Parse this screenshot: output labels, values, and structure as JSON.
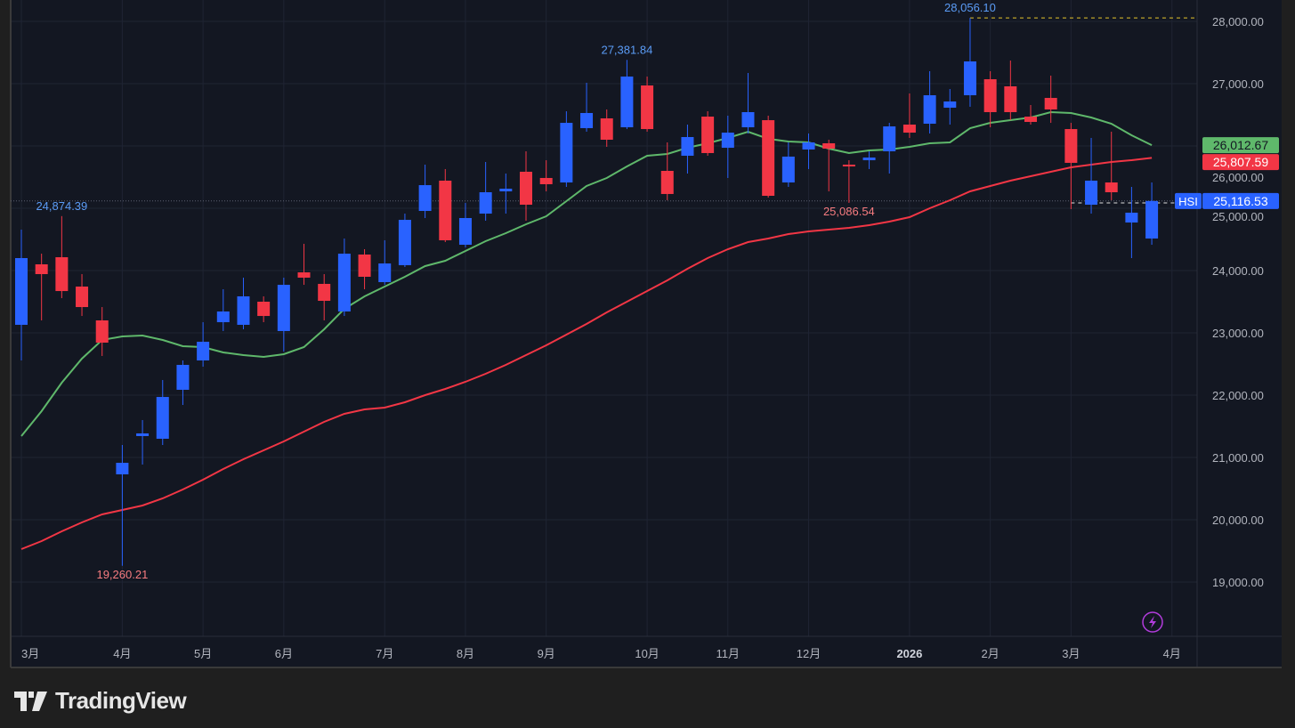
{
  "chart_data": {
    "type": "candlestick",
    "symbol": "HSI",
    "interval": "weekly",
    "ylim": [
      18100,
      28350
    ],
    "yticks": [
      19000,
      20000,
      21000,
      22000,
      23000,
      24000,
      25000,
      26000,
      27000,
      28000
    ],
    "ytick_labels": [
      "19,000.00",
      "20,000.00",
      "21,000.00",
      "22,000.00",
      "23,000.00",
      "24,000.00",
      "25,000.00",
      "26,000.00",
      "27,000.00",
      "28,000.00"
    ],
    "xticks": [
      {
        "index": 1,
        "label": "3月"
      },
      {
        "index": 6,
        "label": "4月"
      },
      {
        "index": 10,
        "label": "5月"
      },
      {
        "index": 14,
        "label": "6月"
      },
      {
        "index": 19,
        "label": "7月"
      },
      {
        "index": 23,
        "label": "8月"
      },
      {
        "index": 27,
        "label": "9月"
      },
      {
        "index": 32,
        "label": "10月"
      },
      {
        "index": 36,
        "label": "11月"
      },
      {
        "index": 40,
        "label": "12月"
      },
      {
        "index": 45,
        "label": "2026",
        "bold": true
      },
      {
        "index": 49,
        "label": "2月"
      },
      {
        "index": 53,
        "label": "3月"
      },
      {
        "index": 58,
        "label": "4月"
      }
    ],
    "ohlc": [
      [
        23129,
        24657,
        22557,
        24200
      ],
      [
        24100,
        24271,
        23200,
        23943
      ],
      [
        24214,
        24874,
        23557,
        23671
      ],
      [
        23743,
        23943,
        23271,
        23414
      ],
      [
        23200,
        23414,
        22629,
        22843
      ],
      [
        20729,
        21200,
        19260,
        20914
      ],
      [
        21343,
        21600,
        20886,
        21386
      ],
      [
        21300,
        22243,
        21200,
        21971
      ],
      [
        22086,
        22557,
        21843,
        22486
      ],
      [
        22557,
        23171,
        22457,
        22857
      ],
      [
        23171,
        23700,
        23029,
        23343
      ],
      [
        23129,
        23886,
        23057,
        23586
      ],
      [
        23500,
        23586,
        23171,
        23271
      ],
      [
        23029,
        23886,
        22700,
        23771
      ],
      [
        23971,
        24429,
        23771,
        23886
      ],
      [
        23786,
        23943,
        23200,
        23514
      ],
      [
        23343,
        24514,
        23271,
        24271
      ],
      [
        24257,
        24343,
        23700,
        23900
      ],
      [
        23814,
        24486,
        23771,
        24114
      ],
      [
        24086,
        24914,
        24057,
        24814
      ],
      [
        24957,
        25700,
        24843,
        25371
      ],
      [
        25443,
        25629,
        24457,
        24486
      ],
      [
        24414,
        25086,
        24371,
        24843
      ],
      [
        24914,
        25743,
        24800,
        25257
      ],
      [
        25271,
        25557,
        24914,
        25314
      ],
      [
        25586,
        25914,
        24800,
        25057
      ],
      [
        25486,
        25771,
        25271,
        25386
      ],
      [
        25414,
        26557,
        25343,
        26371
      ],
      [
        26286,
        27014,
        26229,
        26529
      ],
      [
        26443,
        26586,
        25986,
        26100
      ],
      [
        26300,
        27382,
        26271,
        27114
      ],
      [
        26971,
        27114,
        26229,
        26271
      ],
      [
        25600,
        26057,
        25129,
        25229
      ],
      [
        25843,
        26343,
        25557,
        26143
      ],
      [
        26471,
        26557,
        25843,
        25886
      ],
      [
        25971,
        26486,
        25486,
        26214
      ],
      [
        26300,
        27171,
        26200,
        26543
      ],
      [
        26414,
        26486,
        25171,
        25200
      ],
      [
        25414,
        26057,
        25343,
        25829
      ],
      [
        25943,
        26200,
        25629,
        26057
      ],
      [
        26043,
        26100,
        25271,
        25957
      ],
      [
        25700,
        25771,
        25087,
        25671
      ],
      [
        25771,
        25914,
        25629,
        25814
      ],
      [
        25914,
        26371,
        25557,
        26314
      ],
      [
        26343,
        26843,
        26129,
        26214
      ],
      [
        26357,
        27200,
        26200,
        26814
      ],
      [
        26614,
        26914,
        26343,
        26714
      ],
      [
        26814,
        28056,
        26629,
        27357
      ],
      [
        27071,
        27200,
        26300,
        26543
      ],
      [
        26957,
        27371,
        26414,
        26543
      ],
      [
        26471,
        26657,
        26343,
        26386
      ],
      [
        26771,
        27129,
        26371,
        26586
      ],
      [
        26271,
        26371,
        24986,
        25729
      ],
      [
        25057,
        26129,
        24914,
        25443
      ],
      [
        25414,
        26229,
        25129,
        25257
      ],
      [
        24771,
        25343,
        24200,
        24929
      ],
      [
        24514,
        25414,
        24414,
        25117
      ]
    ],
    "series": [
      {
        "name": "MA short",
        "color": "#5fb86b",
        "values": [
          21343,
          21743,
          22200,
          22586,
          22886,
          22943,
          22957,
          22886,
          22786,
          22771,
          22686,
          22643,
          22614,
          22657,
          22771,
          23057,
          23386,
          23586,
          23743,
          23900,
          24071,
          24157,
          24314,
          24471,
          24600,
          24743,
          24871,
          25114,
          25357,
          25486,
          25671,
          25843,
          25871,
          25971,
          26043,
          26129,
          26229,
          26114,
          26071,
          26057,
          25957,
          25886,
          25929,
          25943,
          25986,
          26043,
          26057,
          26286,
          26371,
          26414,
          26457,
          26543,
          26529,
          26457,
          26357,
          26171,
          26013
        ]
      },
      {
        "name": "MA long",
        "color": "#f23645",
        "values": [
          19529,
          19657,
          19814,
          19957,
          20086,
          20157,
          20229,
          20343,
          20486,
          20643,
          20814,
          20971,
          21114,
          21257,
          21414,
          21571,
          21700,
          21771,
          21800,
          21886,
          22000,
          22100,
          22214,
          22343,
          22486,
          22643,
          22800,
          22971,
          23143,
          23329,
          23500,
          23671,
          23843,
          24029,
          24200,
          24343,
          24457,
          24514,
          24586,
          24629,
          24657,
          24686,
          24729,
          24786,
          24857,
          25000,
          25129,
          25271,
          25357,
          25443,
          25514,
          25586,
          25657,
          25700,
          25743,
          25771,
          25808
        ]
      }
    ],
    "annotations": [
      {
        "text": "24,874.39",
        "index": 3,
        "value": 24874.39,
        "color": "#5b9cf6",
        "pos": "above"
      },
      {
        "text": "19,260.21",
        "index": 6,
        "value": 19260.21,
        "color": "#f77c80",
        "pos": "below"
      },
      {
        "text": "27,381.84",
        "index": 31,
        "value": 27381.84,
        "color": "#5b9cf6",
        "pos": "above"
      },
      {
        "text": "25,086.54",
        "index": 42,
        "value": 25086.54,
        "color": "#f77c80",
        "pos": "below"
      },
      {
        "text": "28,056.10",
        "index": 48,
        "value": 28056.1,
        "color": "#5b9cf6",
        "pos": "above"
      }
    ],
    "price_labels": [
      {
        "text": "26,012.67",
        "value": 26012.67,
        "bg": "#5fb86b",
        "fg": "#131722"
      },
      {
        "text": "25,807.59",
        "value": 25807.59,
        "bg": "#f23645",
        "fg": "#ffffff"
      },
      {
        "text": "25,116.53",
        "value": 25116.53,
        "bg": "#2962ff",
        "fg": "#ffffff",
        "tag": "HSI"
      }
    ],
    "colors": {
      "up": "#2962ff",
      "down": "#f23645",
      "bg": "#131722",
      "grid": "#1f2433",
      "axis_text": "#b2b5be"
    }
  },
  "branding": {
    "logo_text": "TradingView"
  }
}
